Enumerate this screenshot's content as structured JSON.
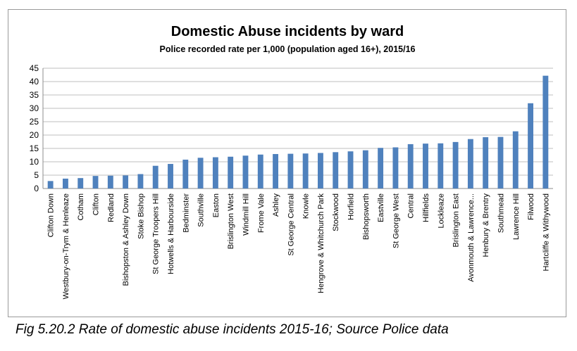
{
  "chart_data": {
    "type": "bar",
    "title": "Domestic Abuse incidents by ward",
    "subtitle": "Police recorded rate per 1,000 (population aged 16+), 2015/16",
    "xlabel": "",
    "ylabel": "",
    "ylim": [
      0,
      45
    ],
    "yticks": [
      "0",
      "5",
      "10",
      "15",
      "20",
      "25",
      "30",
      "35",
      "40",
      "45"
    ],
    "grid": true,
    "legend": "none",
    "bar_color": "#4f81bd",
    "categories": [
      "Clifton Down",
      "Westbury-on-Trym & Henleaze",
      "Cotham",
      "Clifton",
      "Redland",
      "Bishopston & Ashley Down",
      "Stoke Bishop",
      "St George Troopers Hill",
      "Hotwells & Harbourside",
      "Bedminster",
      "Southville",
      "Easton",
      "Brislington West",
      "Windmill Hill",
      "Frome Vale",
      "Ashley",
      "St George Central",
      "Knowle",
      "Hengrove & Whitchurch Park",
      "Stockwood",
      "Horfield",
      "Bishopsworth",
      "Eastville",
      "St George West",
      "Central",
      "Hillfields",
      "Lockleaze",
      "Brislington East",
      "Avonmouth & Lawrence...",
      "Henbury & Brentry",
      "Southmead",
      "Lawrence Hill",
      "Filwood",
      "Hartcliffe & Withywood"
    ],
    "values": [
      2.8,
      3.7,
      3.9,
      4.7,
      4.8,
      4.9,
      5.4,
      8.5,
      9.2,
      10.8,
      11.5,
      11.7,
      11.9,
      12.3,
      12.7,
      12.9,
      13.0,
      13.1,
      13.3,
      13.6,
      13.9,
      14.3,
      15.2,
      15.4,
      16.6,
      16.8,
      16.9,
      17.4,
      18.5,
      19.2,
      19.3,
      21.4,
      31.9,
      42.2
    ]
  },
  "caption": "Fig 5.20.2 Rate of domestic abuse incidents 2015-16; Source Police data"
}
